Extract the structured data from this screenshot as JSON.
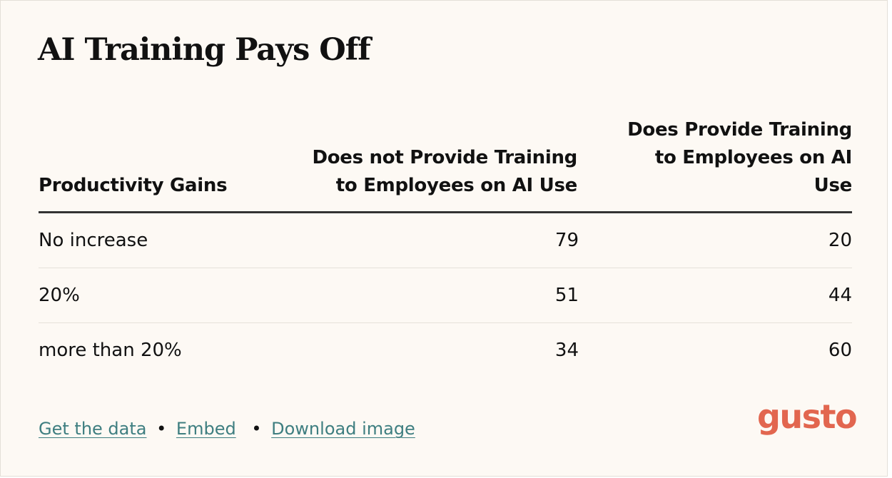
{
  "chart_data": {
    "type": "table",
    "title": "AI Training Pays Off",
    "columns": [
      "Productivity Gains",
      "Does not Provide Training to Employees on AI Use",
      "Does Provide Training to Employees on AI Use"
    ],
    "rows": [
      {
        "label": "No increase",
        "values": [
          "79",
          "20"
        ]
      },
      {
        "label": "20%",
        "values": [
          "51",
          "44"
        ]
      },
      {
        "label": "more than 20%",
        "values": [
          "34",
          "60"
        ]
      }
    ]
  },
  "footer": {
    "links": [
      "Get the data",
      "Embed",
      "Download image"
    ],
    "separator": "•"
  },
  "logo": {
    "text": "gusto",
    "color": "#e2664f"
  },
  "colors": {
    "background": "#fdf9f4",
    "link": "#3e7e80",
    "text": "#111111"
  }
}
